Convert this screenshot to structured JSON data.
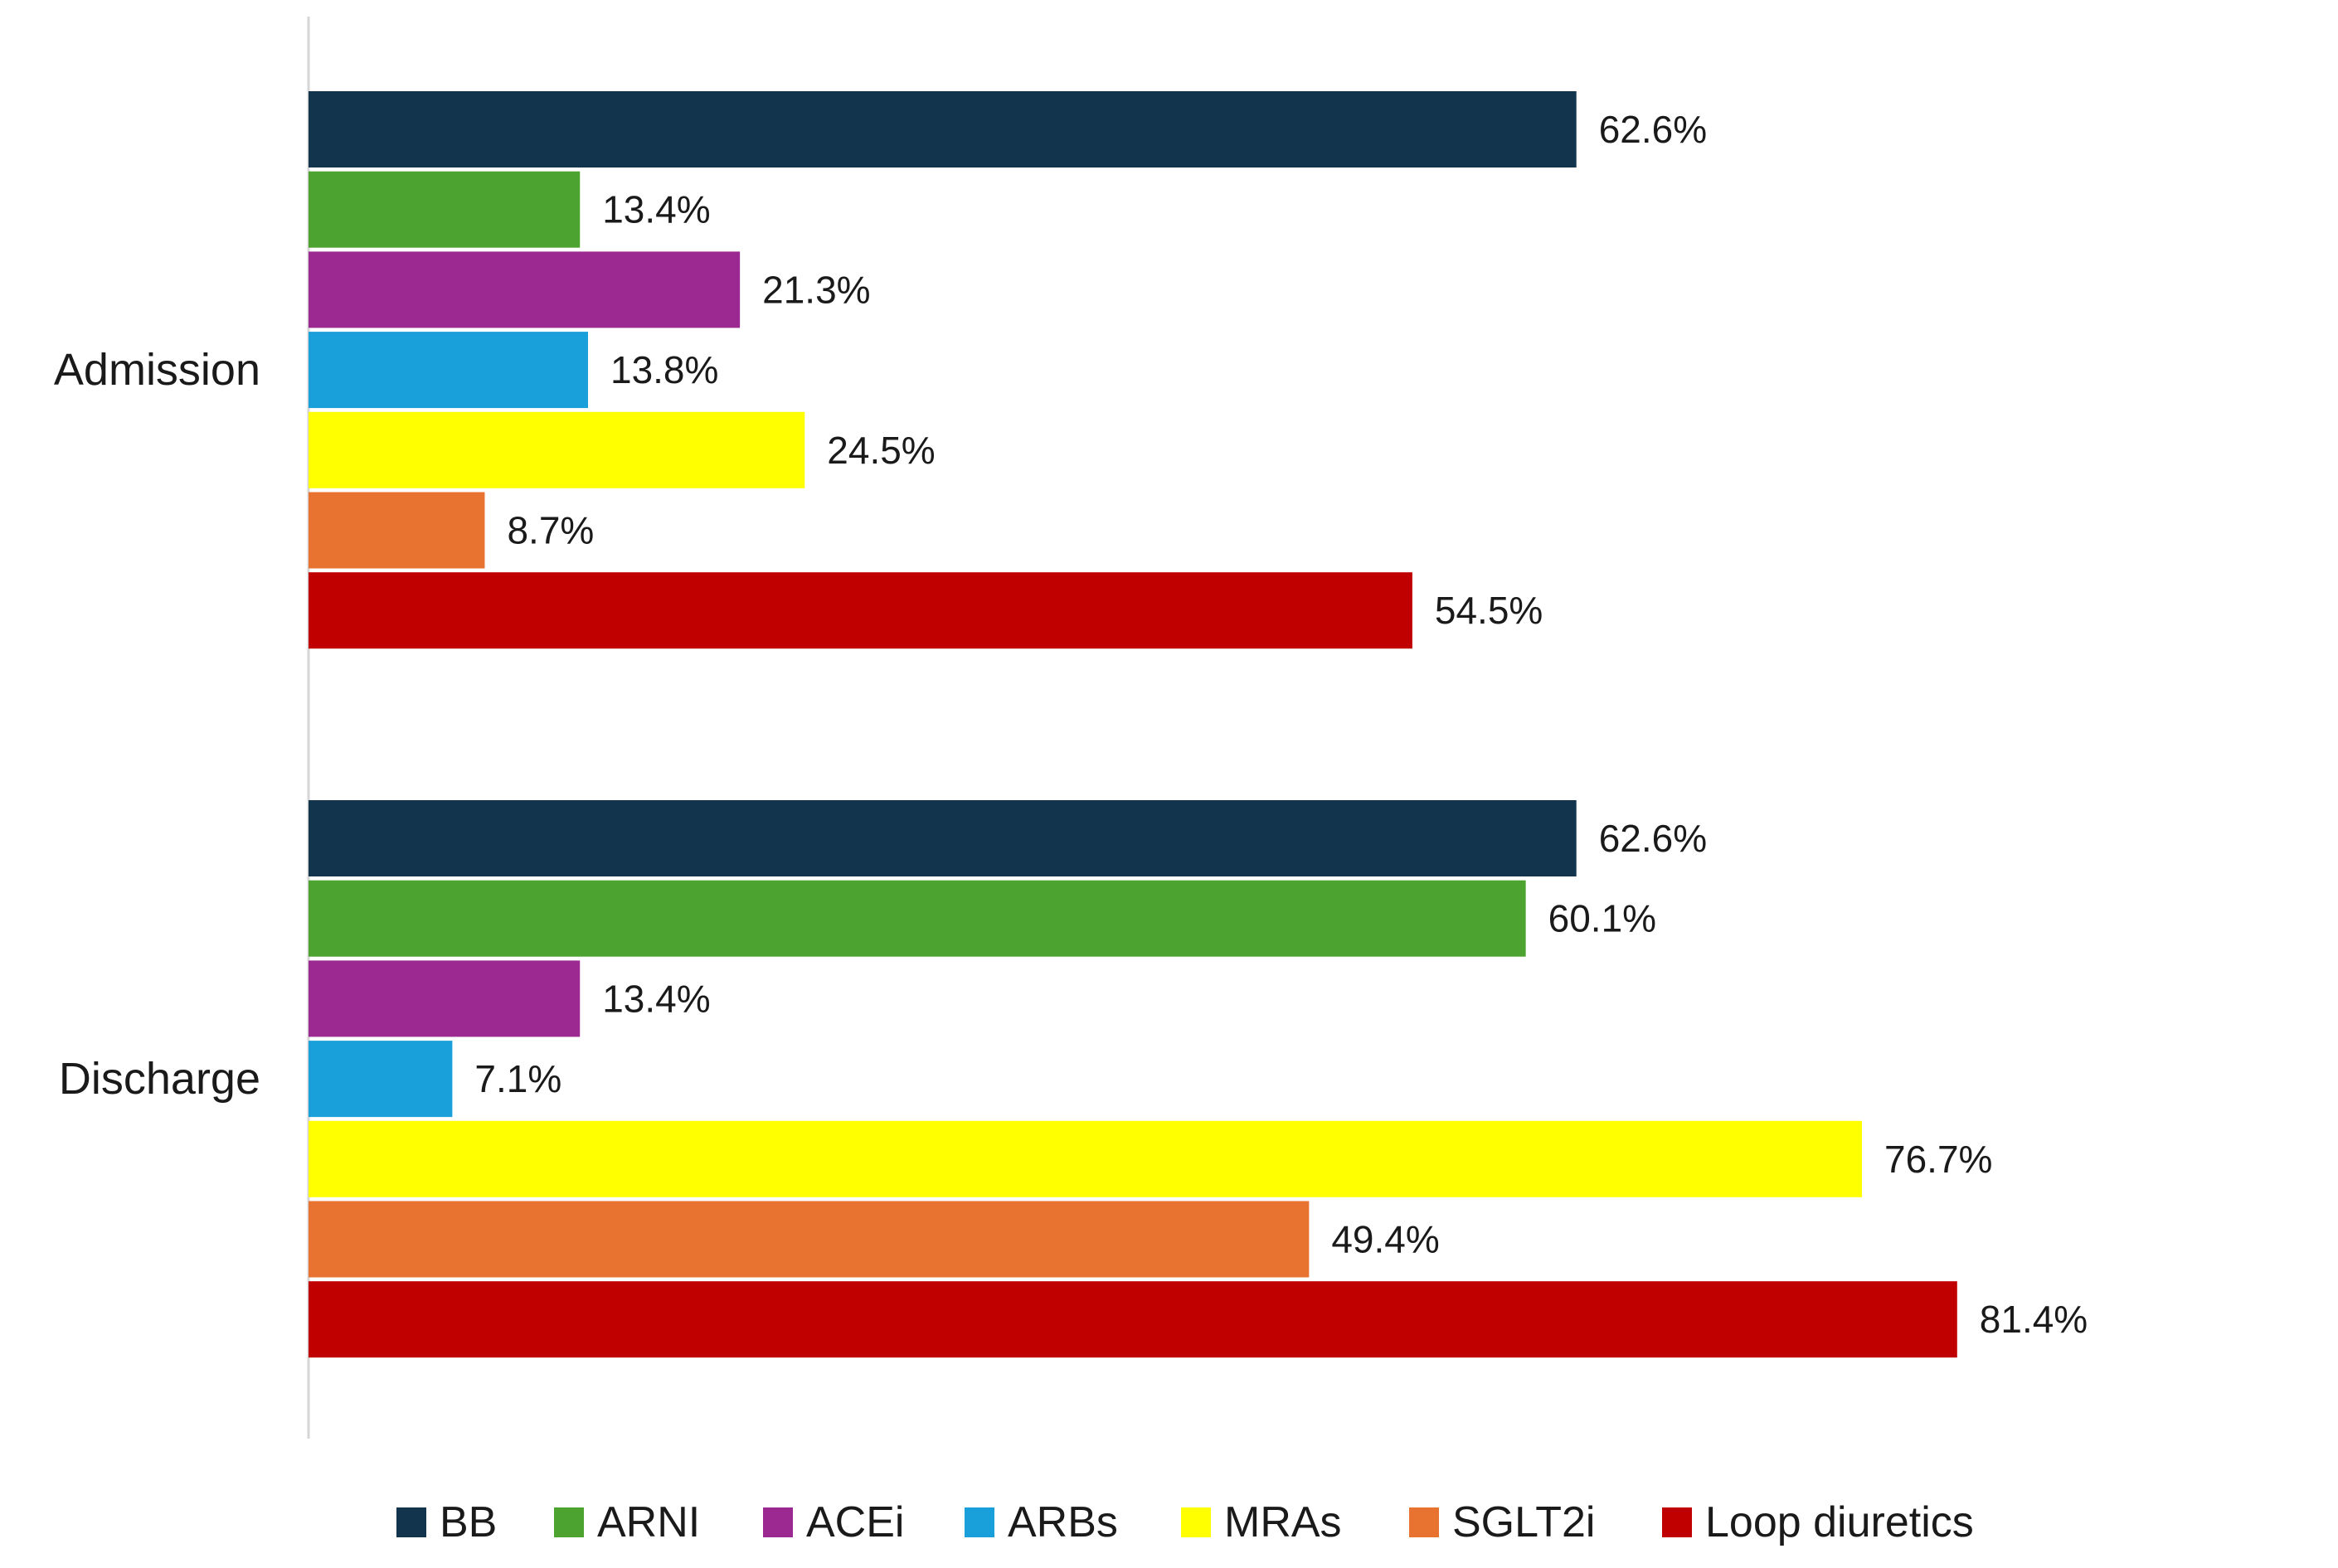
{
  "chart_data": {
    "type": "bar",
    "orientation": "horizontal",
    "title": "",
    "xlabel": "",
    "ylabel": "",
    "xlim": [
      0,
      85
    ],
    "grid": false,
    "legend_position": "bottom",
    "value_suffix": "%",
    "categories": [
      "Admission",
      "Discharge"
    ],
    "series": [
      {
        "name": "BB",
        "color": "#12344c",
        "values": [
          62.6,
          62.6
        ],
        "labels": [
          "62.6%",
          "62.6%"
        ]
      },
      {
        "name": "ARNI",
        "color": "#4ca32f",
        "values": [
          13.4,
          60.1
        ],
        "labels": [
          "13.4%",
          "60.1%"
        ]
      },
      {
        "name": "ACEi",
        "color": "#9c2891",
        "values": [
          21.3,
          13.4
        ],
        "labels": [
          "21.3%",
          "13.4%"
        ]
      },
      {
        "name": "ARBs",
        "color": "#199fd9",
        "values": [
          13.8,
          7.1
        ],
        "labels": [
          "13.8%",
          "7.1%"
        ]
      },
      {
        "name": "MRAs",
        "color": "#ffff00",
        "values": [
          24.5,
          76.7
        ],
        "labels": [
          "24.5%",
          "76.7%"
        ]
      },
      {
        "name": "SGLT2i",
        "color": "#e8722f",
        "values": [
          8.7,
          49.4
        ],
        "labels": [
          "8.7%",
          "49.4%"
        ]
      },
      {
        "name": "Loop diuretics",
        "color": "#c00000",
        "values": [
          54.5,
          81.4
        ],
        "labels": [
          "54.5%",
          "81.4%"
        ]
      }
    ]
  }
}
